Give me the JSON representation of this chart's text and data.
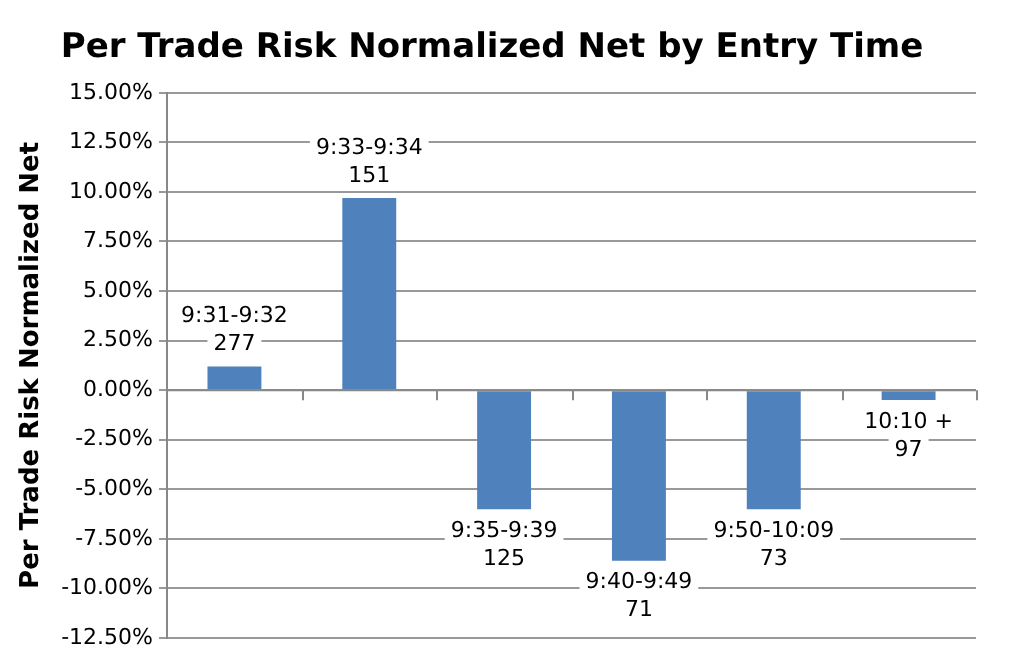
{
  "chart_data": {
    "type": "bar",
    "title": "Per Trade Risk Normalized Net by Entry Time",
    "ylabel": "Per Trade Risk Normalized Net",
    "categories": [
      "9:31-9:32",
      "9:33-9:34",
      "9:35-9:39",
      "9:40-9:49",
      "9:50-10:09",
      "10:10 +"
    ],
    "values": [
      1.2,
      9.7,
      -6.0,
      -8.6,
      -6.0,
      -0.5
    ],
    "color": "#4f81bd",
    "annotations": [
      {
        "text": "277",
        "x": "9:31-9:32",
        "y": 1.2
      },
      {
        "text": "151",
        "x": "9:33-9:34",
        "y": 9.7
      },
      {
        "text": "125",
        "x": "9:35-9:39",
        "y": -6.0
      },
      {
        "text": "71",
        "x": "9:40-9:49",
        "y": -8.6
      },
      {
        "text": "73",
        "x": "9:50-10:09",
        "y": -6.0
      },
      {
        "text": "97",
        "x": "10:10 +",
        "y": -0.5
      }
    ],
    "ylim": [
      -12.5,
      15
    ],
    "yticks": [
      {
        "value": -12.5,
        "label": "-12.50%"
      },
      {
        "value": -10,
        "label": "-10.00%"
      },
      {
        "value": -7.5,
        "label": "-7.50%"
      },
      {
        "value": -5,
        "label": "-5.00%"
      },
      {
        "value": -2.5,
        "label": "-2.50%"
      },
      {
        "value": 0,
        "label": "0.00%"
      },
      {
        "value": 2.5,
        "label": "2.50%"
      },
      {
        "value": 5,
        "label": "5.00%"
      },
      {
        "value": 7.5,
        "label": "7.50%"
      },
      {
        "value": 10,
        "label": "10.00%"
      },
      {
        "value": 12.5,
        "label": "12.50%"
      },
      {
        "value": 15,
        "label": "15.00%"
      }
    ],
    "grid": "y",
    "legend": false
  }
}
